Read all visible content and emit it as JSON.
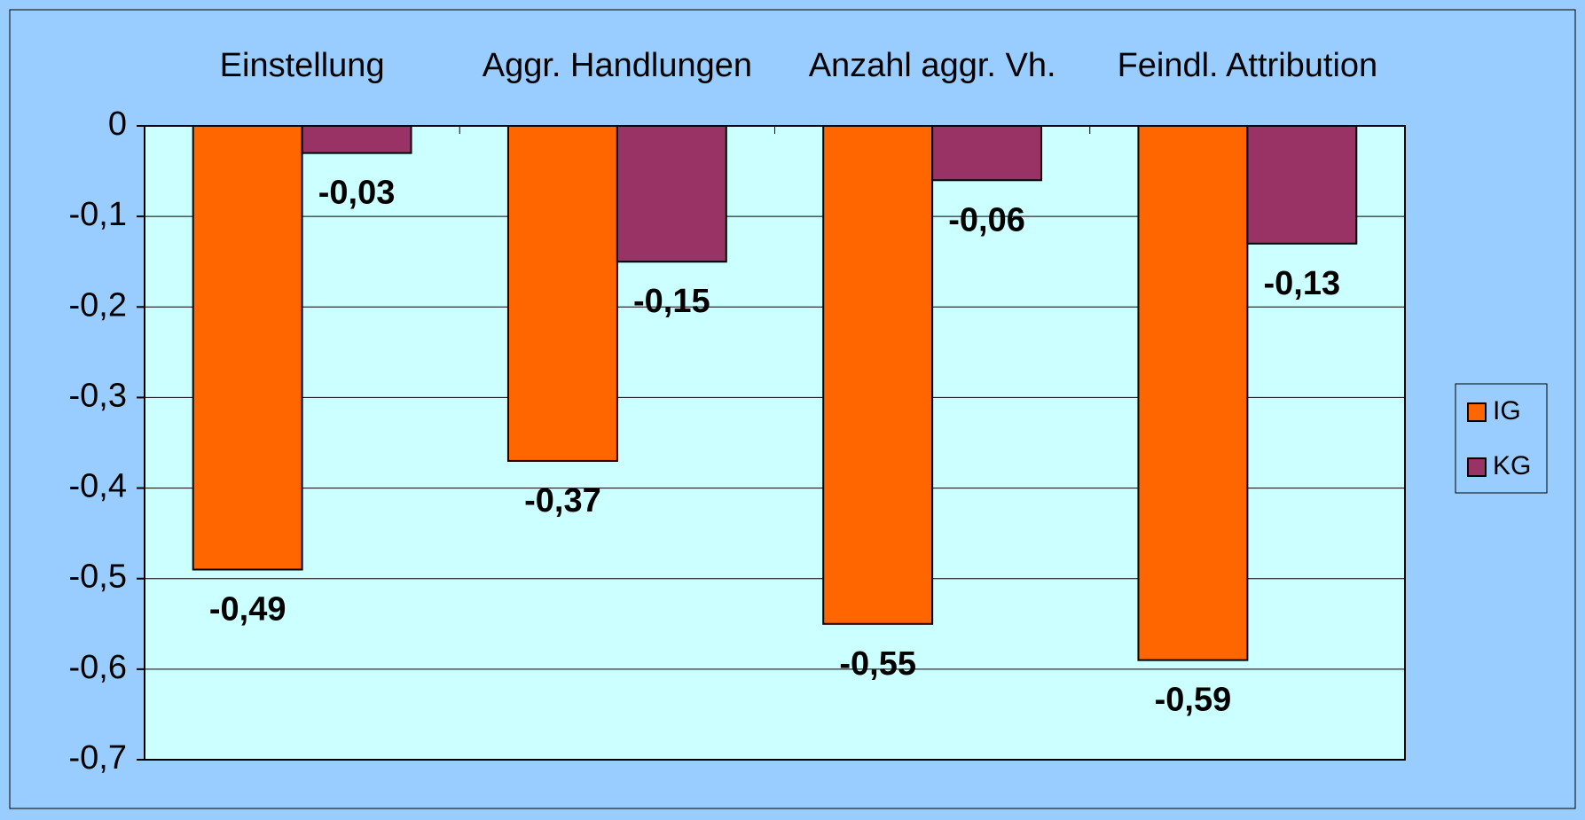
{
  "chart_data": {
    "type": "bar",
    "categories": [
      "Einstellung",
      "Aggr. Handlungen",
      "Anzahl aggr. Vh.",
      "Feindl. Attribution"
    ],
    "series": [
      {
        "name": "IG",
        "color": "#ff6600",
        "values": [
          -0.49,
          -0.37,
          -0.55,
          -0.59
        ],
        "value_labels": [
          "-0,49",
          "-0,37",
          "-0,55",
          "-0,59"
        ]
      },
      {
        "name": "KG",
        "color": "#993366",
        "values": [
          -0.03,
          -0.15,
          -0.06,
          -0.13
        ],
        "value_labels": [
          "-0,03",
          "-0,15",
          "-0,06",
          "-0,13"
        ]
      }
    ],
    "ylim": [
      -0.7,
      0
    ],
    "yticks": [
      0,
      {
        "value": -0.1,
        "label": "-0,1"
      },
      {
        "value": -0.2,
        "label": "-0,2"
      },
      {
        "value": -0.3,
        "label": "-0,3"
      },
      {
        "value": -0.4,
        "label": "-0,4"
      },
      {
        "value": -0.5,
        "label": "-0,5"
      },
      {
        "value": -0.6,
        "label": "-0,6"
      },
      {
        "value": -0.7,
        "label": "-0,7"
      }
    ],
    "grid": true,
    "legend": "right"
  }
}
